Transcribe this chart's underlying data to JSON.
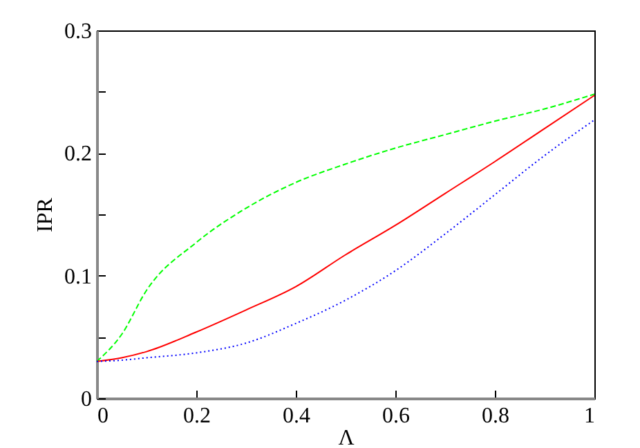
{
  "chart_data": {
    "type": "line",
    "xlabel": "Λ",
    "ylabel": "IPR",
    "xlim": [
      0,
      1
    ],
    "ylim": [
      0,
      0.3
    ],
    "xticks": [
      0,
      0.2,
      0.4,
      0.6,
      0.8,
      1
    ],
    "yticks": [
      0,
      {
        "value": 0.05,
        "label": null
      },
      0.1,
      {
        "value": 0.15,
        "label": null
      },
      0.2,
      {
        "value": 0.25,
        "label": null
      },
      0.3
    ],
    "grid": false,
    "x": [
      0,
      0.05,
      0.1,
      0.2,
      0.3,
      0.4,
      0.5,
      0.6,
      0.7,
      0.8,
      0.9,
      1
    ],
    "series": [
      {
        "color": "#00ff00",
        "line_style": "dashed",
        "values": [
          0.03,
          0.052,
          0.088,
          0.127,
          0.155,
          0.176,
          0.191,
          0.204,
          0.215,
          0.226,
          0.236,
          0.248
        ]
      },
      {
        "color": "#ff0000",
        "line_style": "solid",
        "values": [
          0.03,
          0.033,
          0.038,
          0.054,
          0.072,
          0.091,
          0.117,
          0.141,
          0.167,
          0.193,
          0.22,
          0.247
        ]
      },
      {
        "color": "#0000ff",
        "line_style": "dotted",
        "values": [
          0.03,
          0.031,
          0.033,
          0.037,
          0.045,
          0.061,
          0.08,
          0.104,
          0.134,
          0.166,
          0.198,
          0.227
        ]
      }
    ]
  }
}
